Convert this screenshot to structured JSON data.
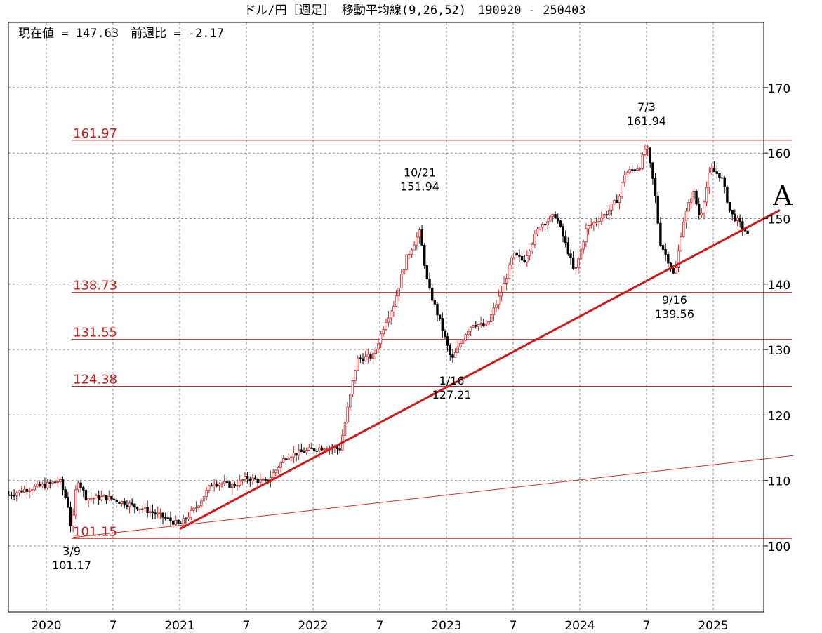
{
  "chart_data": {
    "type": "candlestick",
    "title": "ドル/円［週足］ 移動平均線(9,26,52)　190920 - 250403",
    "info": "現在値 = 147.63　前週比 = -2.17",
    "marker_letter": "A",
    "ylim": [
      90,
      180
    ],
    "y_ticks": [
      100,
      110,
      120,
      130,
      140,
      150,
      160,
      170
    ],
    "y_tick_labels": [
      "100",
      "110",
      "120",
      "130",
      "140",
      "150",
      "160",
      "170"
    ],
    "x_range_years": [
      2019.72,
      2025.3
    ],
    "x_gridlines": [
      2020.0,
      2020.5,
      2021.0,
      2021.5,
      2022.0,
      2022.5,
      2023.0,
      2023.5,
      2024.0,
      2024.5,
      2025.0
    ],
    "x_ticks": [
      {
        "t": 2020.0,
        "label": "2020"
      },
      {
        "t": 2020.5,
        "label": "7"
      },
      {
        "t": 2021.0,
        "label": "2021"
      },
      {
        "t": 2021.5,
        "label": "7"
      },
      {
        "t": 2022.0,
        "label": "2022"
      },
      {
        "t": 2022.5,
        "label": "7"
      },
      {
        "t": 2023.0,
        "label": "2023"
      },
      {
        "t": 2023.5,
        "label": "7"
      },
      {
        "t": 2024.0,
        "label": "2024"
      },
      {
        "t": 2024.5,
        "label": "7"
      },
      {
        "t": 2025.0,
        "label": "2025"
      }
    ],
    "levels": [
      {
        "value": 161.97,
        "label": "161.97"
      },
      {
        "value": 138.73,
        "label": "138.73"
      },
      {
        "value": 131.55,
        "label": "131.55"
      },
      {
        "value": 124.38,
        "label": "124.38"
      },
      {
        "value": 101.15,
        "label": "101.15"
      }
    ],
    "trendlines": [
      {
        "name": "main-uptrend",
        "from": {
          "t": 2021.0,
          "v": 102.6
        },
        "to": {
          "t": 2025.5,
          "v": 151.3
        },
        "bold": true
      },
      {
        "name": "long-support",
        "from": {
          "t": 2020.2,
          "v": 101.3
        },
        "to": {
          "t": 2025.6,
          "v": 113.8
        },
        "bold": false
      }
    ],
    "annotations": [
      {
        "date": "3/9",
        "value": "101.17",
        "t": 2020.19,
        "v": 101.17,
        "pos": "below"
      },
      {
        "date": "10/21",
        "value": "151.94",
        "t": 2022.8,
        "v": 151.94,
        "pos": "above"
      },
      {
        "date": "1/16",
        "value": "127.21",
        "t": 2023.04,
        "v": 127.21,
        "pos": "below"
      },
      {
        "date": "7/3",
        "value": "161.94",
        "t": 2024.5,
        "v": 161.94,
        "pos": "above"
      },
      {
        "date": "9/16",
        "value": "139.56",
        "t": 2024.71,
        "v": 139.56,
        "pos": "below"
      }
    ],
    "series_anchors": [
      [
        2019.72,
        107.8
      ],
      [
        2019.85,
        108.7
      ],
      [
        2020.0,
        109.3
      ],
      [
        2020.1,
        110.0
      ],
      [
        2020.16,
        106.5
      ],
      [
        2020.19,
        102.0
      ],
      [
        2020.23,
        110.5
      ],
      [
        2020.3,
        107.3
      ],
      [
        2020.45,
        107.4
      ],
      [
        2020.6,
        106.5
      ],
      [
        2020.75,
        105.5
      ],
      [
        2020.9,
        104.2
      ],
      [
        2021.0,
        103.2
      ],
      [
        2021.12,
        105.8
      ],
      [
        2021.25,
        109.8
      ],
      [
        2021.4,
        109.2
      ],
      [
        2021.5,
        110.4
      ],
      [
        2021.65,
        109.7
      ],
      [
        2021.8,
        113.8
      ],
      [
        2021.95,
        114.5
      ],
      [
        2022.1,
        115.2
      ],
      [
        2022.2,
        114.8
      ],
      [
        2022.33,
        128.5
      ],
      [
        2022.45,
        129.0
      ],
      [
        2022.55,
        134.7
      ],
      [
        2022.6,
        136.5
      ],
      [
        2022.7,
        144.0
      ],
      [
        2022.8,
        148.0
      ],
      [
        2022.86,
        139.8
      ],
      [
        2022.95,
        134.4
      ],
      [
        2023.04,
        128.3
      ],
      [
        2023.15,
        132.8
      ],
      [
        2023.2,
        134.0
      ],
      [
        2023.3,
        133.5
      ],
      [
        2023.42,
        139.2
      ],
      [
        2023.5,
        144.5
      ],
      [
        2023.58,
        143.5
      ],
      [
        2023.7,
        149.0
      ],
      [
        2023.82,
        150.5
      ],
      [
        2023.92,
        144.5
      ],
      [
        2023.96,
        141.5
      ],
      [
        2024.05,
        148.5
      ],
      [
        2024.2,
        150.8
      ],
      [
        2024.3,
        153.5
      ],
      [
        2024.33,
        156.8
      ],
      [
        2024.45,
        158.0
      ],
      [
        2024.5,
        161.3
      ],
      [
        2024.56,
        154.5
      ],
      [
        2024.6,
        146.5
      ],
      [
        2024.67,
        143.3
      ],
      [
        2024.71,
        141.0
      ],
      [
        2024.77,
        149.2
      ],
      [
        2024.85,
        154.3
      ],
      [
        2024.9,
        150.0
      ],
      [
        2024.98,
        157.5
      ],
      [
        2025.06,
        156.5
      ],
      [
        2025.13,
        150.8
      ],
      [
        2025.2,
        149.2
      ],
      [
        2025.26,
        147.63
      ]
    ]
  }
}
